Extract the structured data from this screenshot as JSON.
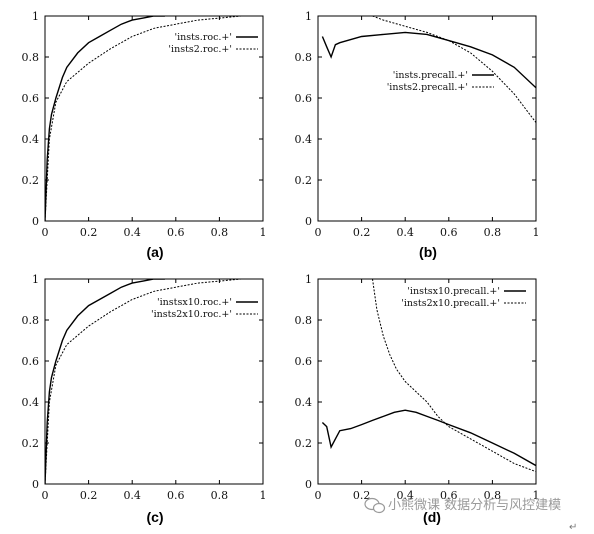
{
  "chart_data": [
    {
      "type": "line",
      "caption": "(a)",
      "xlim": [
        0,
        1
      ],
      "ylim": [
        0,
        1
      ],
      "xticks": [
        "0",
        "0.2",
        "0.4",
        "0.6",
        "0.8",
        "1"
      ],
      "yticks": [
        "0",
        "0.2",
        "0.4",
        "0.6",
        "0.8",
        "1"
      ],
      "legend_position": "top-right",
      "series": [
        {
          "name": "'insts.roc.+'",
          "style": "solid",
          "x": [
            0,
            0.01,
            0.02,
            0.03,
            0.05,
            0.08,
            0.1,
            0.15,
            0.2,
            0.25,
            0.3,
            0.35,
            0.4,
            0.45,
            0.5,
            0.55
          ],
          "y": [
            0,
            0.3,
            0.45,
            0.52,
            0.6,
            0.7,
            0.75,
            0.82,
            0.87,
            0.9,
            0.93,
            0.96,
            0.98,
            0.99,
            1.0,
            1.0
          ]
        },
        {
          "name": "'insts2.roc.+'",
          "style": "dashed",
          "x": [
            0,
            0.01,
            0.02,
            0.05,
            0.1,
            0.2,
            0.3,
            0.4,
            0.5,
            0.6,
            0.7,
            0.8,
            0.9,
            1.0
          ],
          "y": [
            0,
            0.2,
            0.4,
            0.58,
            0.68,
            0.77,
            0.84,
            0.9,
            0.94,
            0.96,
            0.98,
            0.99,
            1.0,
            1.0
          ]
        }
      ]
    },
    {
      "type": "line",
      "caption": "(b)",
      "xlim": [
        0,
        1
      ],
      "ylim": [
        0,
        1
      ],
      "xticks": [
        "0",
        "0.2",
        "0.4",
        "0.6",
        "0.8",
        "1"
      ],
      "yticks": [
        "0",
        "0.2",
        "0.4",
        "0.6",
        "0.8",
        "1"
      ],
      "legend_position": "center-right",
      "series": [
        {
          "name": "'insts.precall.+'",
          "style": "solid",
          "x": [
            0.02,
            0.04,
            0.06,
            0.08,
            0.1,
            0.2,
            0.3,
            0.4,
            0.5,
            0.6,
            0.7,
            0.8,
            0.9,
            1.0
          ],
          "y": [
            0.9,
            0.85,
            0.8,
            0.86,
            0.87,
            0.9,
            0.91,
            0.92,
            0.91,
            0.88,
            0.85,
            0.81,
            0.75,
            0.65
          ]
        },
        {
          "name": "'insts2.precall.+'",
          "style": "dashed",
          "x": [
            0.25,
            0.3,
            0.4,
            0.5,
            0.6,
            0.7,
            0.8,
            0.9,
            1.0
          ],
          "y": [
            1.0,
            0.98,
            0.95,
            0.92,
            0.88,
            0.82,
            0.73,
            0.62,
            0.48
          ]
        }
      ]
    },
    {
      "type": "line",
      "caption": "(c)",
      "xlim": [
        0,
        1
      ],
      "ylim": [
        0,
        1
      ],
      "xticks": [
        "0",
        "0.2",
        "0.4",
        "0.6",
        "0.8",
        "1"
      ],
      "yticks": [
        "0",
        "0.2",
        "0.4",
        "0.6",
        "0.8",
        "1"
      ],
      "legend_position": "top-right",
      "series": [
        {
          "name": "'instsx10.roc.+'",
          "style": "solid",
          "x": [
            0,
            0.01,
            0.02,
            0.03,
            0.05,
            0.08,
            0.1,
            0.15,
            0.2,
            0.25,
            0.3,
            0.35,
            0.4,
            0.45,
            0.5,
            0.55
          ],
          "y": [
            0,
            0.3,
            0.45,
            0.52,
            0.6,
            0.7,
            0.75,
            0.82,
            0.87,
            0.9,
            0.93,
            0.96,
            0.98,
            0.99,
            1.0,
            1.0
          ]
        },
        {
          "name": "'insts2x10.roc.+'",
          "style": "dashed",
          "x": [
            0,
            0.01,
            0.02,
            0.05,
            0.1,
            0.2,
            0.3,
            0.4,
            0.5,
            0.6,
            0.7,
            0.8,
            0.9,
            1.0
          ],
          "y": [
            0,
            0.2,
            0.4,
            0.58,
            0.68,
            0.77,
            0.84,
            0.9,
            0.94,
            0.96,
            0.98,
            0.99,
            1.0,
            1.0
          ]
        }
      ]
    },
    {
      "type": "line",
      "caption": "(d)",
      "xlim": [
        0,
        1
      ],
      "ylim": [
        0,
        1
      ],
      "xticks": [
        "0",
        "0.2",
        "0.4",
        "0.6",
        "0.8",
        "1"
      ],
      "yticks": [
        "0",
        "0.2",
        "0.4",
        "0.6",
        "0.8",
        "1"
      ],
      "legend_position": "top-right",
      "series": [
        {
          "name": "'instsx10.precall.+'",
          "style": "solid",
          "x": [
            0.02,
            0.04,
            0.06,
            0.08,
            0.1,
            0.15,
            0.2,
            0.25,
            0.3,
            0.35,
            0.4,
            0.45,
            0.5,
            0.55,
            0.6,
            0.7,
            0.8,
            0.9,
            1.0
          ],
          "y": [
            0.3,
            0.28,
            0.18,
            0.22,
            0.26,
            0.27,
            0.29,
            0.31,
            0.33,
            0.35,
            0.36,
            0.35,
            0.33,
            0.31,
            0.29,
            0.25,
            0.2,
            0.15,
            0.09
          ]
        },
        {
          "name": "'insts2x10.precall.+'",
          "style": "dashed",
          "x": [
            0.25,
            0.27,
            0.3,
            0.33,
            0.36,
            0.4,
            0.45,
            0.5,
            0.55,
            0.6,
            0.7,
            0.8,
            0.9,
            1.0
          ],
          "y": [
            1.0,
            0.85,
            0.72,
            0.63,
            0.56,
            0.5,
            0.45,
            0.4,
            0.33,
            0.28,
            0.22,
            0.16,
            0.1,
            0.06
          ]
        }
      ]
    }
  ],
  "watermark": "小熊微课 数据分析与风控建模"
}
